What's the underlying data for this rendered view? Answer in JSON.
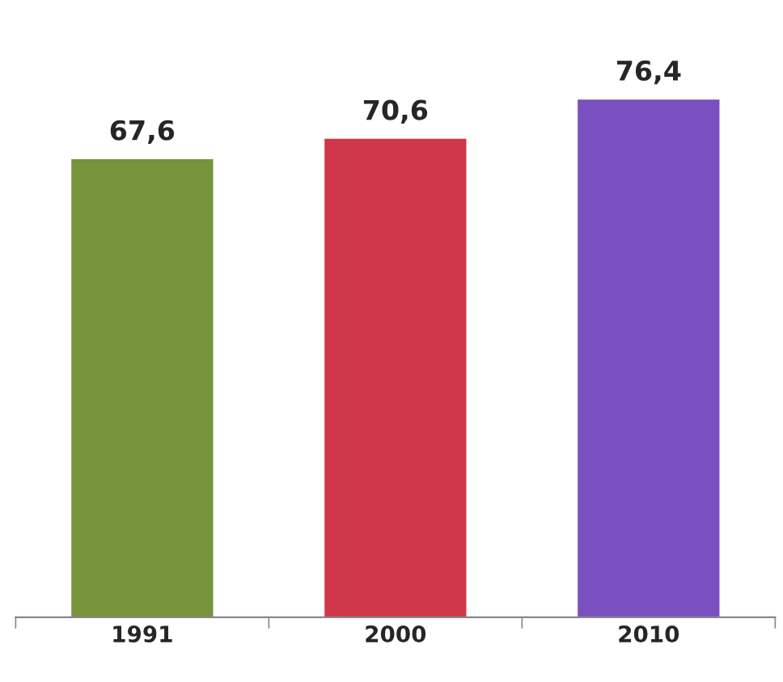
{
  "chart_data": {
    "type": "bar",
    "categories": [
      "1991",
      "2000",
      "2010"
    ],
    "values": [
      67.6,
      70.6,
      76.4
    ],
    "colors": [
      "#77933c",
      "#d0374a",
      "#7a4fc0"
    ],
    "value_labels": [
      "67,6",
      "70,6",
      "76,4"
    ],
    "tick_labels": "x",
    "grid": false,
    "legend": false
  }
}
